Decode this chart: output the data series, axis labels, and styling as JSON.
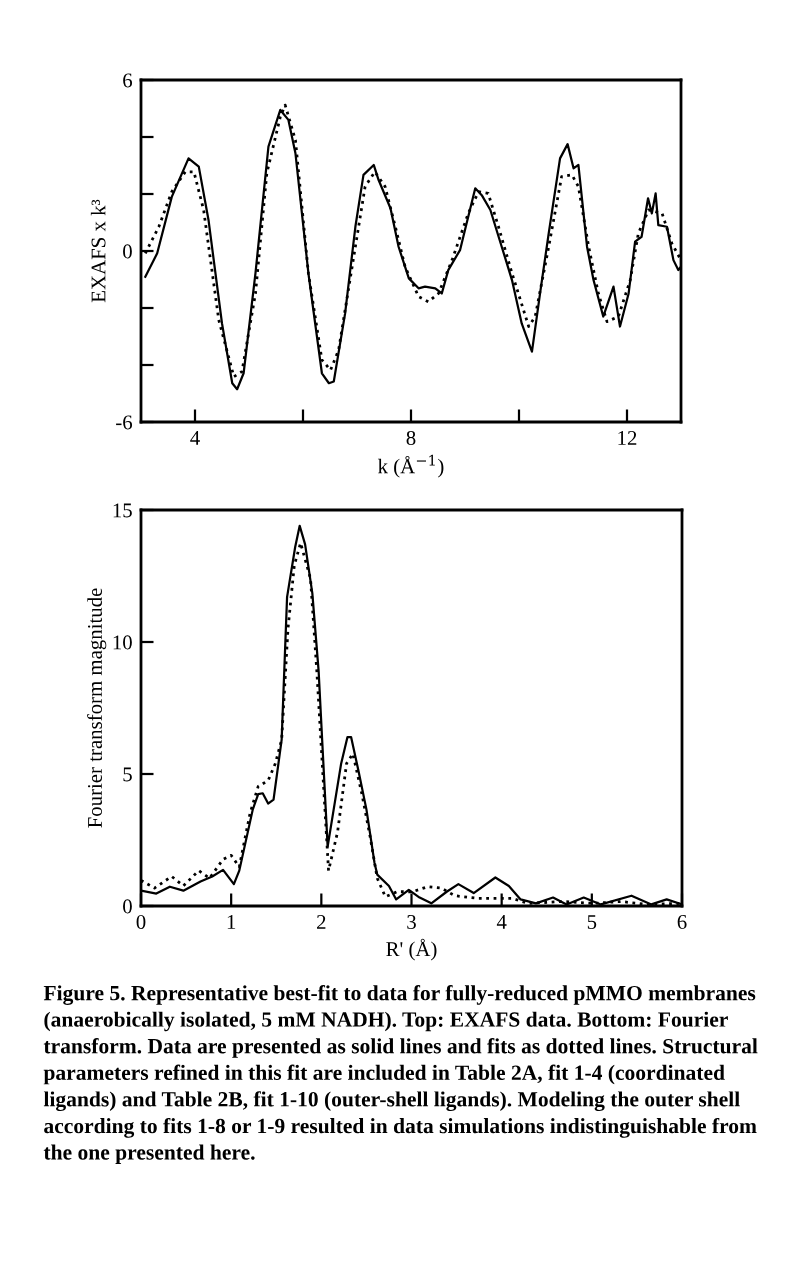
{
  "chart_data": [
    {
      "type": "line",
      "xlabel": "k (Å$^{−1}$)",
      "ylabel": "EXAFS x k³",
      "xlim": [
        3,
        13
      ],
      "ylim": [
        -6,
        6
      ],
      "xticks": [
        4,
        {
          "value": 6,
          "label": null
        },
        8,
        {
          "value": 10,
          "label": null
        },
        12
      ],
      "yticks": [
        -6,
        {
          "value": -4,
          "label": null
        },
        {
          "value": -2,
          "label": null
        },
        0,
        {
          "value": 2,
          "label": null
        },
        {
          "value": 4,
          "label": null
        },
        6
      ],
      "grid": false,
      "legend": false,
      "series": [
        {
          "color": "#000000",
          "line_style": "solid",
          "x": [
            3.08,
            3.3,
            3.57,
            3.88,
            4.07,
            4.25,
            4.5,
            4.69,
            4.78,
            4.9,
            5.12,
            5.36,
            5.58,
            5.73,
            5.86,
            6.1,
            6.35,
            6.48,
            6.57,
            6.78,
            6.97,
            7.12,
            7.31,
            7.4,
            7.62,
            7.77,
            7.96,
            8.14,
            8.26,
            8.45,
            8.57,
            8.69,
            8.91,
            9.03,
            9.19,
            9.31,
            9.47,
            9.68,
            9.87,
            10.05,
            10.24,
            10.39,
            10.55,
            10.76,
            10.9,
            11.01,
            11.1,
            11.26,
            11.38,
            11.56,
            11.75,
            11.87,
            12.03,
            12.15,
            12.27,
            12.39,
            12.46,
            12.53,
            12.58,
            12.74,
            12.86,
            12.95,
            13.0
          ],
          "values": [
            -0.9,
            -0.08,
            1.9,
            3.25,
            2.96,
            1.09,
            -2.54,
            -4.64,
            -4.85,
            -4.29,
            -0.78,
            3.66,
            4.95,
            4.6,
            3.43,
            -0.78,
            -4.29,
            -4.64,
            -4.58,
            -2.19,
            0.85,
            2.67,
            3.02,
            2.49,
            1.5,
            0.15,
            -0.96,
            -1.31,
            -1.25,
            -1.31,
            -1.49,
            -0.67,
            0.04,
            0.97,
            2.2,
            1.96,
            1.44,
            0.15,
            -1.02,
            -2.54,
            -3.53,
            -1.49,
            0.62,
            3.25,
            3.75,
            2.9,
            3.02,
            0.15,
            -1.02,
            -2.3,
            -1.25,
            -2.65,
            -1.49,
            0.33,
            0.5,
            1.85,
            1.32,
            2.02,
            0.91,
            0.85,
            -0.32,
            -0.67,
            -0.55
          ]
        },
        {
          "color": "#000000",
          "line_style": "dotted",
          "x": [
            3.08,
            3.33,
            3.57,
            3.82,
            3.98,
            4.16,
            4.44,
            4.72,
            4.87,
            5.12,
            5.33,
            5.58,
            5.67,
            5.86,
            6.1,
            6.35,
            6.51,
            6.66,
            6.91,
            7.15,
            7.33,
            7.52,
            7.71,
            7.89,
            8.14,
            8.32,
            8.51,
            8.76,
            9.06,
            9.25,
            9.43,
            9.62,
            9.87,
            10.18,
            10.3,
            10.55,
            10.79,
            10.98,
            11.1,
            11.29,
            11.47,
            11.63,
            11.84,
            12.06,
            12.21,
            12.4,
            12.65,
            12.83,
            13.0
          ],
          "values": [
            -0.08,
            0.85,
            2.08,
            2.78,
            2.78,
            1.44,
            -2.42,
            -4.41,
            -4.23,
            -1.49,
            2.73,
            4.71,
            5.12,
            3.89,
            -0.78,
            -3.82,
            -4.18,
            -3.47,
            -0.55,
            2.26,
            2.78,
            2.26,
            0.85,
            -0.55,
            -1.6,
            -1.78,
            -1.49,
            -0.32,
            1.32,
            2.08,
            2.02,
            0.85,
            -0.78,
            -2.65,
            -2.3,
            0.15,
            2.61,
            2.67,
            2.26,
            0.15,
            -1.49,
            -2.48,
            -2.3,
            -1.02,
            0.62,
            1.44,
            1.32,
            0.27,
            -0.32
          ]
        }
      ]
    },
    {
      "type": "line",
      "xlabel": "R' (Å)",
      "ylabel": "Fourier transform magnitude",
      "xlim": [
        0,
        6
      ],
      "ylim": [
        0,
        15
      ],
      "xticks": [
        0,
        1,
        2,
        3,
        4,
        5,
        6
      ],
      "yticks": [
        0,
        5,
        10,
        15
      ],
      "grid": false,
      "legend": false,
      "series": [
        {
          "color": "#000000",
          "line_style": "solid",
          "x": [
            0,
            0.17,
            0.32,
            0.47,
            0.66,
            0.79,
            0.91,
            1.03,
            1.09,
            1.24,
            1.3,
            1.35,
            1.41,
            1.47,
            1.56,
            1.62,
            1.71,
            1.76,
            1.82,
            1.9,
            1.97,
            2.07,
            2.22,
            2.29,
            2.33,
            2.41,
            2.5,
            2.59,
            2.62,
            2.75,
            2.83,
            2.97,
            3.09,
            3.22,
            3.39,
            3.52,
            3.69,
            3.93,
            4.08,
            4.21,
            4.38,
            4.57,
            4.72,
            4.91,
            5.1,
            5.44,
            5.66,
            5.83,
            6.0
          ],
          "values": [
            0.58,
            0.47,
            0.73,
            0.58,
            0.93,
            1.12,
            1.37,
            0.83,
            1.34,
            3.66,
            4.24,
            4.27,
            3.88,
            4.03,
            6.3,
            11.7,
            13.6,
            14.4,
            13.7,
            11.85,
            8.9,
            2.25,
            5.4,
            6.4,
            6.4,
            5.15,
            3.66,
            1.63,
            1.19,
            0.76,
            0.25,
            0.61,
            0.32,
            0.1,
            0.54,
            0.83,
            0.49,
            1.08,
            0.76,
            0.25,
            0.1,
            0.32,
            0.06,
            0.32,
            0.06,
            0.39,
            0.06,
            0.25,
            0.06
          ]
        },
        {
          "color": "#000000",
          "line_style": "dotted",
          "x": [
            0,
            0.15,
            0.34,
            0.47,
            0.64,
            0.76,
            0.91,
            1.0,
            1.09,
            1.21,
            1.3,
            1.41,
            1.49,
            1.56,
            1.63,
            1.7,
            1.77,
            1.88,
            1.95,
            2.08,
            2.18,
            2.28,
            2.35,
            2.45,
            2.54,
            2.62,
            2.71,
            2.84,
            3.01,
            3.18,
            3.33,
            3.48,
            3.74,
            4.12,
            4.29,
            4.68,
            5.02,
            5.32,
            5.62,
            6.0
          ],
          "values": [
            0.97,
            0.68,
            1.12,
            0.76,
            1.34,
            1.05,
            1.77,
            1.92,
            1.48,
            3.52,
            4.53,
            4.75,
            5.4,
            6.3,
            10.5,
            12.9,
            13.75,
            12.4,
            8.9,
            1.34,
            2.8,
            5.4,
            5.77,
            4.24,
            2.65,
            1.05,
            0.35,
            0.54,
            0.54,
            0.73,
            0.68,
            0.39,
            0.29,
            0.29,
            0.1,
            0.17,
            0.1,
            0.17,
            0.06,
            0.1
          ]
        }
      ],
      "annotations": [
        "Figure 5. Representative best-fit to data for fully-reduced pMMO membranes (anaerobically isolated, 5 mM NADH). Top: EXAFS data. Bottom: Fourier transform. Data are presented as solid lines and fits as dotted lines. Structural parameters refined in this fit are included in Table 2A, fit 1-4 (coordinated ligands) and Table 2B, fit 1-10 (outer-shell ligands). Modeling the outer shell according to fits 1-8 or 1-9 resulted in data simulations indistinguishable from the one presented here."
      ]
    }
  ]
}
